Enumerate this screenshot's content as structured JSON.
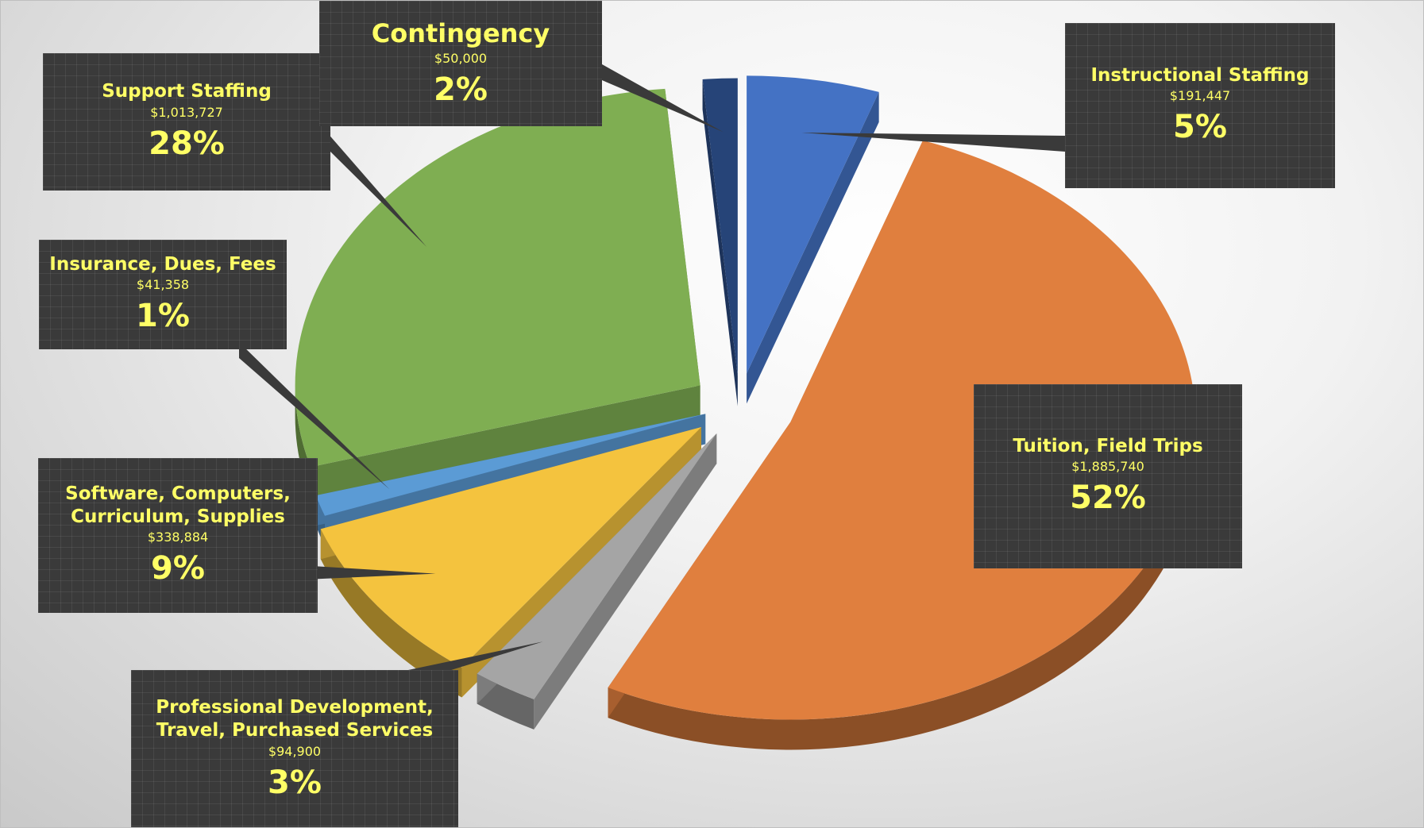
{
  "chart_data": {
    "type": "pie",
    "title": "",
    "slices": [
      {
        "label": "Instructional Staffing",
        "amount": "$191,447",
        "percent": "5%",
        "value": 191447,
        "color": "#4472c4"
      },
      {
        "label": "Tuition, Field Trips",
        "amount": "$1,885,740",
        "percent": "52%",
        "value": 1885740,
        "color": "#e07f3e"
      },
      {
        "label": "Professional Development, Travel, Purchased Services",
        "amount": "$94,900",
        "percent": "3%",
        "value": 94900,
        "color": "#a5a5a5"
      },
      {
        "label": "Software, Computers, Curriculum, Supplies",
        "amount": "$338,884",
        "percent": "9%",
        "value": 338884,
        "color": "#f4c33e"
      },
      {
        "label": "Insurance, Dues, Fees",
        "amount": "$41,358",
        "percent": "1%",
        "value": 41358,
        "color": "#5b9bd5"
      },
      {
        "label": "Support Staffing",
        "amount": "$1,013,727",
        "percent": "28%",
        "value": 1013727,
        "color": "#7fae52"
      },
      {
        "label": "Contingency",
        "amount": "$50,000",
        "percent": "2%",
        "value": 50000,
        "color": "#264478"
      }
    ]
  }
}
